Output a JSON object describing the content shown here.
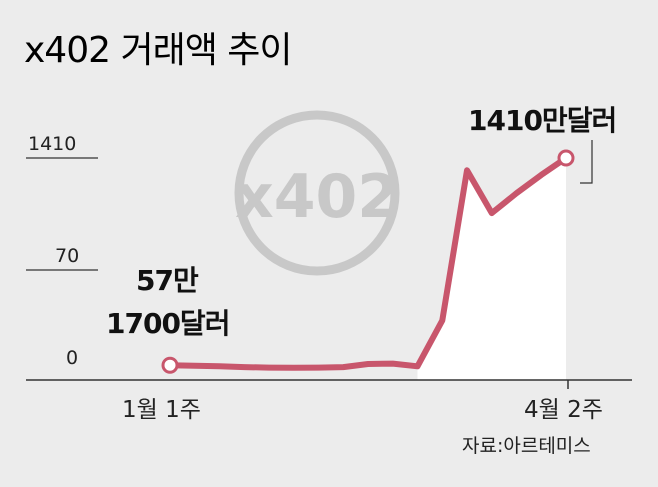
{
  "chart_data": {
    "type": "area",
    "title": "x402 거래액 추이",
    "watermark": "x402",
    "y_tick_labels": [
      "1410",
      "70",
      "0"
    ],
    "x_tick_labels": [
      "1월 1주",
      "4월 2주"
    ],
    "annotations": {
      "start_line1": "57만",
      "start_line2": "1700달러",
      "end": "1410만달러"
    },
    "source": "자료:아르테미스",
    "units": "만달러",
    "series": [
      {
        "values": [
          57.17,
          54,
          50,
          45,
          42,
          41,
          42,
          45,
          65,
          68,
          50,
          350,
          1330,
          1050,
          1180,
          1300,
          1410
        ]
      }
    ],
    "colors": {
      "line": "#c8566c",
      "area": "#ffffff",
      "background": "#ececec",
      "watermark": "#c8c8c8"
    }
  }
}
